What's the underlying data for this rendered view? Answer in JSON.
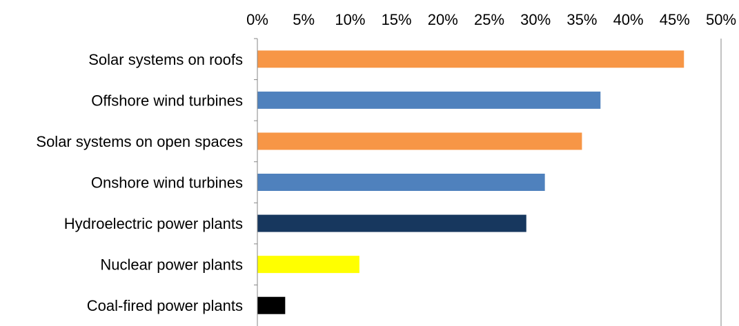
{
  "chart_data": {
    "type": "bar",
    "orientation": "horizontal",
    "categories": [
      "Solar systems on roofs",
      "Offshore wind turbines",
      "Solar systems on open spaces",
      "Onshore wind turbines",
      "Hydroelectric power plants",
      "Nuclear power plants",
      "Coal-fired power plants"
    ],
    "values": [
      46,
      37,
      35,
      31,
      29,
      11,
      3
    ],
    "bar_colors": [
      "#f79646",
      "#4f81bd",
      "#f79646",
      "#4f81bd",
      "#17375e",
      "#ffff00",
      "#000000"
    ],
    "xlim": [
      0,
      50
    ],
    "x_ticks": [
      0,
      5,
      10,
      15,
      20,
      25,
      30,
      35,
      40,
      45,
      50
    ],
    "x_tick_labels": [
      "0%",
      "5%",
      "10%",
      "15%",
      "20%",
      "25%",
      "30%",
      "35%",
      "40%",
      "45%",
      "50%"
    ],
    "x_axis_position": "top",
    "grid": "vertical line at maximum only",
    "legend": "none",
    "title": "",
    "xlabel": "",
    "ylabel": ""
  }
}
